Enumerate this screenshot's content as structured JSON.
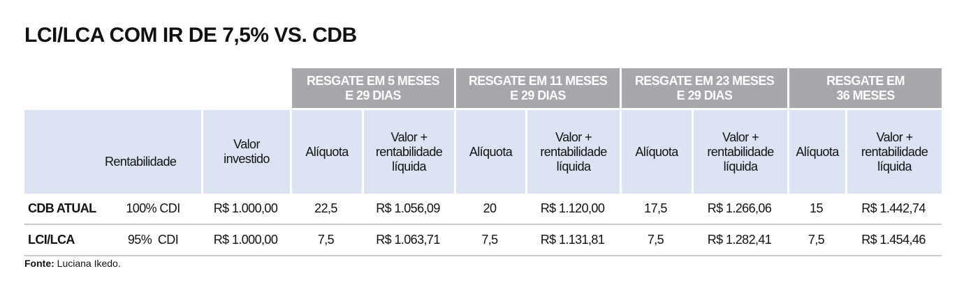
{
  "title": "LCI/LCA COM IR DE 7,5% VS. CDB",
  "groups": [
    {
      "line1": "RESGATE EM 5 MESES",
      "line2": "E 29 DIAS"
    },
    {
      "line1": "RESGATE EM 11 MESES",
      "line2": "E 29 DIAS"
    },
    {
      "line1": "RESGATE EM 23 MESES",
      "line2": "E 29 DIAS"
    },
    {
      "line1": "RESGATE EM",
      "line2": "36 MESES"
    }
  ],
  "headers": {
    "rentabilidade": "Rentabilidade",
    "valor_investido": [
      "Valor",
      "investido"
    ],
    "aliquota": "Alíquota",
    "valor_liquido": [
      "Valor +",
      "rentabilidade",
      "líquida"
    ]
  },
  "rows": [
    {
      "label": "CDB ATUAL",
      "rent": "100% CDI",
      "invest": "R$ 1.000,00",
      "cells": [
        "22,5",
        "R$ 1.056,09",
        "20",
        "R$ 1.120,00",
        "17,5",
        "R$ 1.266,06",
        "15",
        "R$ 1.442,74"
      ]
    },
    {
      "label": "LCI/LCA",
      "rent": "95%  CDI",
      "invest": "R$ 1.000,00",
      "cells": [
        "7,5",
        "R$ 1.063,71",
        "7,5",
        "R$ 1.131,81",
        "7,5",
        "R$ 1.282,41",
        "7,5",
        "R$ 1.454,46"
      ]
    }
  ],
  "source": {
    "label": "Fonte:",
    "text": " Luciana Ikedo."
  }
}
